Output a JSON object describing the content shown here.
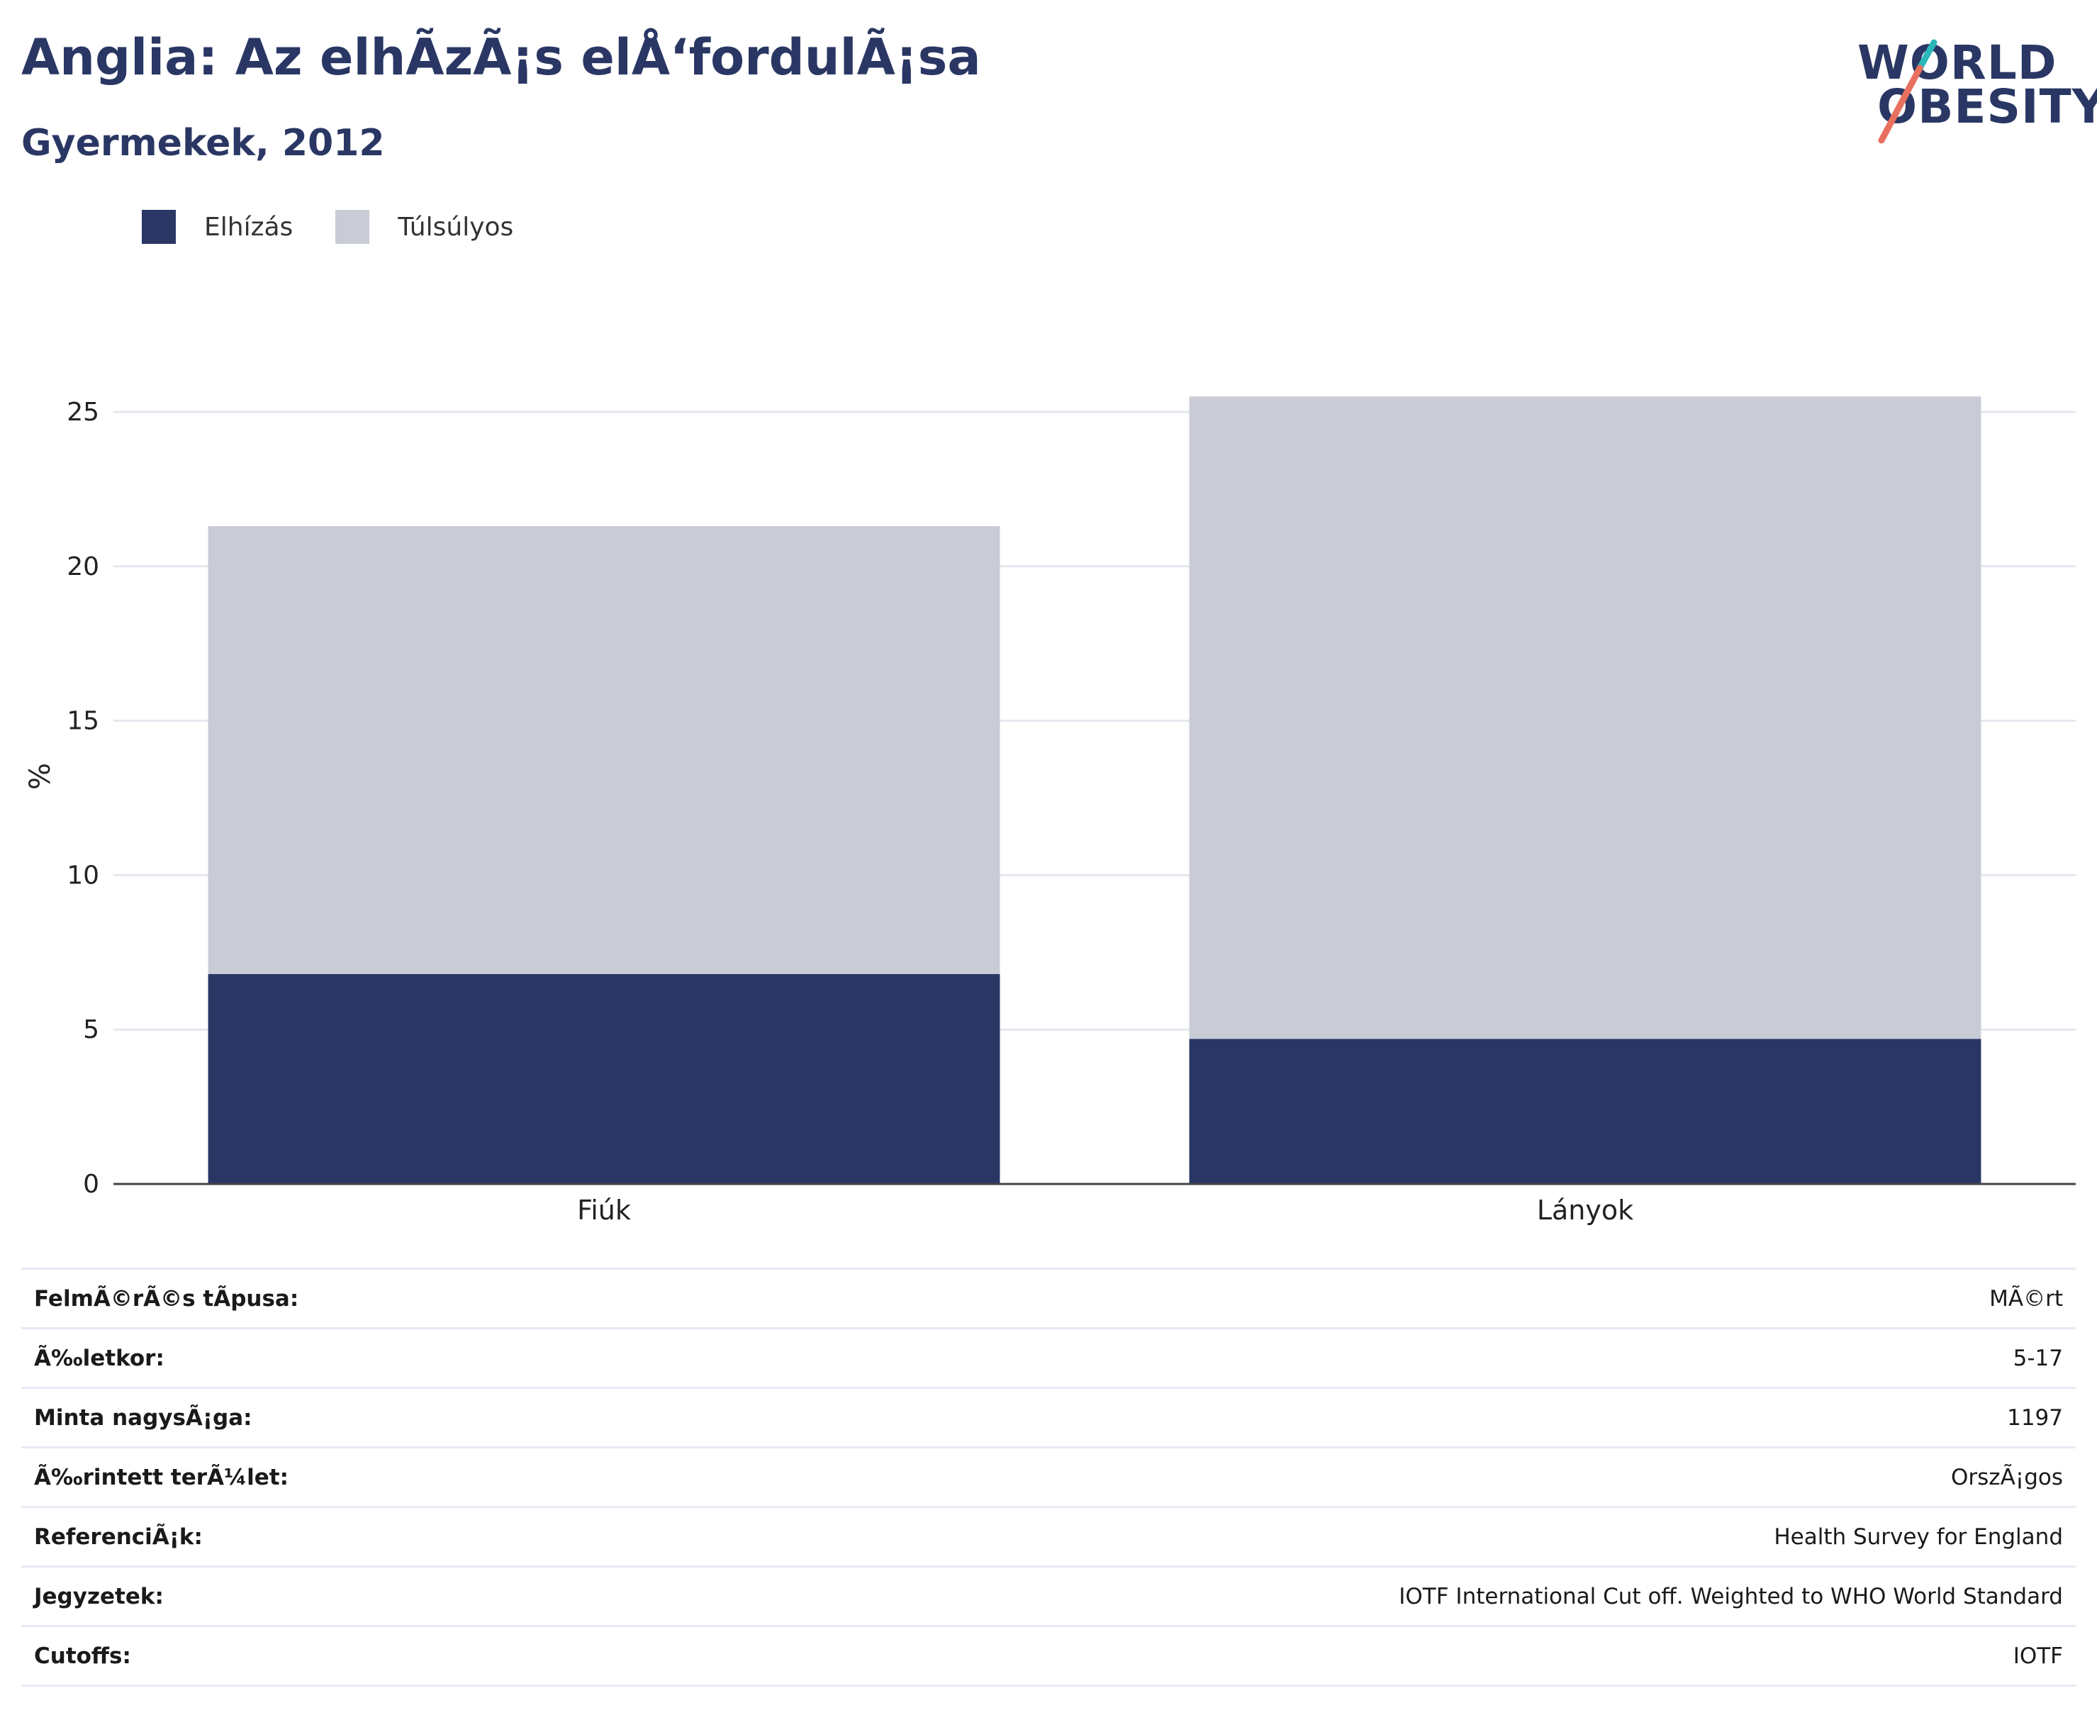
{
  "title": "Anglia: Az elhÃzÃ¡s elÅ‘fordulÃ¡sa",
  "subtitle": "Gyermekek, 2012",
  "logo": {
    "line1": "WORLD",
    "line2": "OBESITY"
  },
  "colors": {
    "obese": "#2a3764",
    "overweight": "#c9ccd7",
    "title": "#2a3764",
    "logo_teal": "#2bb6b8",
    "logo_coral": "#e8705f"
  },
  "legend": [
    {
      "label": "Elhízás",
      "color": "#2a3764"
    },
    {
      "label": "Túlsúlyos",
      "color": "#c9ccd7"
    }
  ],
  "chart_data": {
    "type": "bar",
    "stacked": true,
    "categories": [
      "Fiúk",
      "Lányok"
    ],
    "series": [
      {
        "name": "Elhízás",
        "values": [
          6.8,
          4.7
        ]
      },
      {
        "name": "Túlsúlyos",
        "values": [
          14.5,
          20.8
        ]
      }
    ],
    "ylabel": "%",
    "ylim": [
      0,
      26.4
    ],
    "yticks": [
      0,
      5,
      10,
      15,
      20,
      25
    ],
    "grid": true,
    "legend_position": "top-left"
  },
  "info_rows": [
    {
      "label": "FelmÃ©rÃ©s tÃpusa:",
      "value": "MÃ©rt"
    },
    {
      "label": "Ã‰letkor:",
      "value": "5-17"
    },
    {
      "label": "Minta nagysÃ¡ga:",
      "value": "1197"
    },
    {
      "label": "Ã‰rintett terÃ¼let:",
      "value": "OrszÃ¡gos"
    },
    {
      "label": "ReferenciÃ¡k:",
      "value": "Health Survey for England"
    },
    {
      "label": "Jegyzetek:",
      "value": "IOTF International Cut off. Weighted to WHO World Standard"
    },
    {
      "label": "Cutoffs:",
      "value": "IOTF"
    }
  ]
}
